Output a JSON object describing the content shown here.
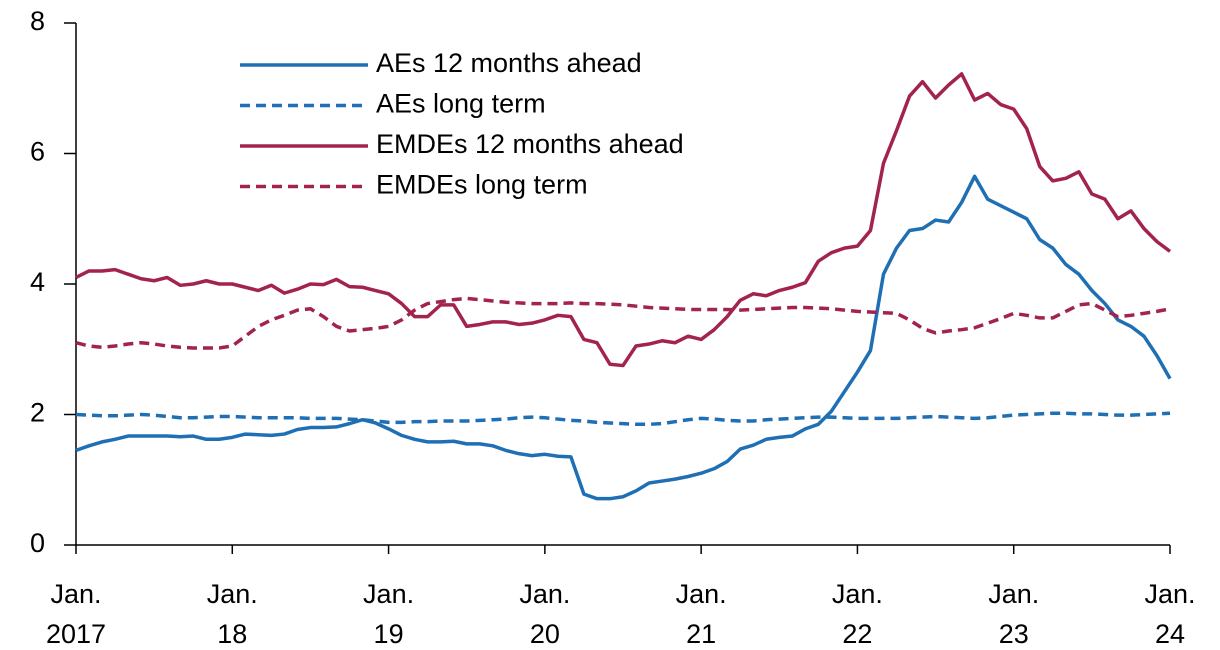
{
  "chart_data": {
    "type": "line",
    "categories": [
      "Jan.\n2017",
      null,
      null,
      null,
      null,
      null,
      null,
      null,
      null,
      null,
      null,
      null,
      "Jan.\n18",
      null,
      null,
      null,
      null,
      null,
      null,
      null,
      null,
      null,
      null,
      null,
      "Jan.\n19",
      null,
      null,
      null,
      null,
      null,
      null,
      null,
      null,
      null,
      null,
      null,
      "Jan.\n20",
      null,
      null,
      null,
      null,
      null,
      null,
      null,
      null,
      null,
      null,
      null,
      "Jan.\n21",
      null,
      null,
      null,
      null,
      null,
      null,
      null,
      null,
      null,
      null,
      null,
      "Jan.\n22",
      null,
      null,
      null,
      null,
      null,
      null,
      null,
      null,
      null,
      null,
      null,
      "Jan.\n23",
      null,
      null,
      null,
      null,
      null,
      null,
      null,
      null,
      null,
      null,
      null,
      "Jan.\n24"
    ],
    "ylim": [
      0,
      8
    ],
    "yticks": [
      0,
      2,
      4,
      6,
      8
    ],
    "legend": "upper-left",
    "series": [
      {
        "name": "AEs 12 months ahead",
        "color": "#1f6fb4",
        "linestyle": "solid",
        "values": [
          1.45,
          1.52,
          1.58,
          1.62,
          1.67,
          1.67,
          1.67,
          1.67,
          1.66,
          1.67,
          1.62,
          1.62,
          1.65,
          1.7,
          1.69,
          1.68,
          1.7,
          1.77,
          1.8,
          1.8,
          1.81,
          1.86,
          1.92,
          1.87,
          1.78,
          1.68,
          1.62,
          1.58,
          1.58,
          1.59,
          1.55,
          1.55,
          1.52,
          1.45,
          1.4,
          1.37,
          1.39,
          1.36,
          1.35,
          0.78,
          0.71,
          0.71,
          0.74,
          0.83,
          0.95,
          0.98,
          1.01,
          1.05,
          1.1,
          1.17,
          1.28,
          1.47,
          1.53,
          1.62,
          1.65,
          1.67,
          1.78,
          1.85,
          2.05,
          2.35,
          2.65,
          2.98,
          4.15,
          4.55,
          4.82,
          4.85,
          4.98,
          4.95,
          5.25,
          5.65,
          5.3,
          5.2,
          5.1,
          5.0,
          4.68,
          4.55,
          4.3,
          4.15,
          3.9,
          3.7,
          3.45,
          3.35,
          3.2,
          2.9,
          2.55
        ]
      },
      {
        "name": "AEs long term",
        "color": "#1f6fb4",
        "linestyle": "dashed",
        "values": [
          2.0,
          1.99,
          1.98,
          1.98,
          1.99,
          2.0,
          1.99,
          1.97,
          1.95,
          1.95,
          1.96,
          1.97,
          1.97,
          1.96,
          1.95,
          1.95,
          1.95,
          1.95,
          1.94,
          1.94,
          1.94,
          1.93,
          1.92,
          1.9,
          1.88,
          1.88,
          1.89,
          1.89,
          1.9,
          1.9,
          1.9,
          1.91,
          1.92,
          1.93,
          1.95,
          1.96,
          1.95,
          1.93,
          1.91,
          1.9,
          1.88,
          1.87,
          1.86,
          1.85,
          1.85,
          1.86,
          1.89,
          1.92,
          1.94,
          1.93,
          1.91,
          1.9,
          1.9,
          1.92,
          1.93,
          1.94,
          1.95,
          1.96,
          1.96,
          1.95,
          1.94,
          1.94,
          1.94,
          1.94,
          1.95,
          1.96,
          1.97,
          1.96,
          1.95,
          1.94,
          1.95,
          1.97,
          1.99,
          2.0,
          2.01,
          2.02,
          2.02,
          2.01,
          2.01,
          2.0,
          1.99,
          1.99,
          2.0,
          2.01,
          2.02
        ]
      },
      {
        "name": "EMDEs 12 months ahead",
        "color": "#a3234f",
        "linestyle": "solid",
        "values": [
          4.1,
          4.2,
          4.2,
          4.22,
          4.15,
          4.08,
          4.05,
          4.1,
          3.98,
          4.0,
          4.05,
          4.0,
          4.0,
          3.95,
          3.9,
          3.98,
          3.86,
          3.92,
          4.0,
          3.99,
          4.07,
          3.96,
          3.95,
          3.9,
          3.85,
          3.7,
          3.5,
          3.5,
          3.68,
          3.68,
          3.35,
          3.38,
          3.42,
          3.42,
          3.38,
          3.4,
          3.45,
          3.52,
          3.5,
          3.15,
          3.1,
          2.77,
          2.75,
          3.05,
          3.08,
          3.13,
          3.1,
          3.2,
          3.15,
          3.3,
          3.5,
          3.75,
          3.85,
          3.82,
          3.9,
          3.95,
          4.02,
          4.35,
          4.48,
          4.55,
          4.58,
          4.82,
          5.85,
          6.35,
          6.88,
          7.1,
          6.85,
          7.05,
          7.22,
          6.82,
          6.92,
          6.75,
          6.68,
          6.38,
          5.8,
          5.58,
          5.62,
          5.72,
          5.38,
          5.3,
          5.0,
          5.12,
          4.85,
          4.65,
          4.5
        ]
      },
      {
        "name": "EMDEs long term",
        "color": "#a3234f",
        "linestyle": "dashed",
        "values": [
          3.1,
          3.05,
          3.03,
          3.05,
          3.08,
          3.1,
          3.08,
          3.05,
          3.03,
          3.02,
          3.02,
          3.02,
          3.05,
          3.2,
          3.35,
          3.45,
          3.52,
          3.6,
          3.62,
          3.5,
          3.35,
          3.28,
          3.3,
          3.32,
          3.35,
          3.45,
          3.6,
          3.7,
          3.73,
          3.76,
          3.78,
          3.76,
          3.74,
          3.72,
          3.71,
          3.7,
          3.7,
          3.7,
          3.71,
          3.7,
          3.7,
          3.69,
          3.68,
          3.66,
          3.64,
          3.63,
          3.62,
          3.61,
          3.61,
          3.61,
          3.61,
          3.6,
          3.61,
          3.62,
          3.63,
          3.64,
          3.64,
          3.63,
          3.62,
          3.6,
          3.58,
          3.57,
          3.56,
          3.55,
          3.45,
          3.32,
          3.25,
          3.28,
          3.3,
          3.33,
          3.4,
          3.47,
          3.55,
          3.52,
          3.48,
          3.48,
          3.58,
          3.68,
          3.7,
          3.6,
          3.5,
          3.52,
          3.55,
          3.58,
          3.62
        ]
      }
    ]
  }
}
